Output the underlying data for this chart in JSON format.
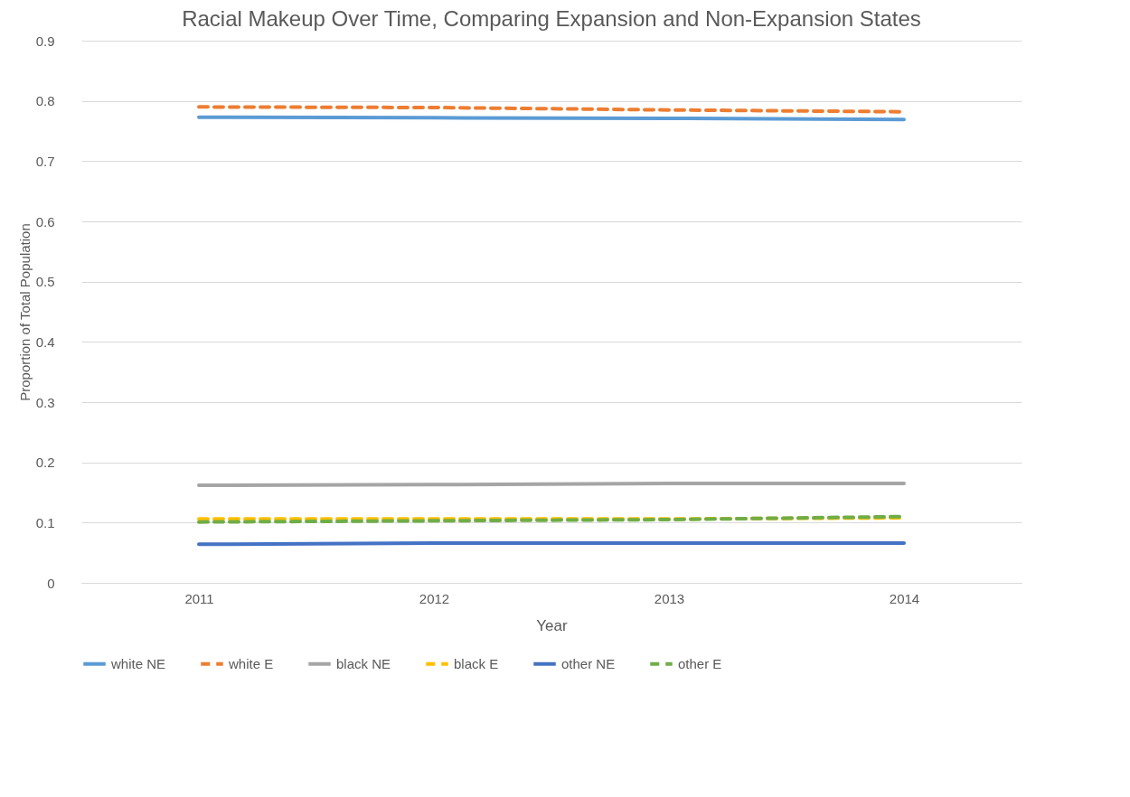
{
  "chart_data": {
    "type": "line",
    "title": "Racial Makeup Over Time, Comparing Expansion and Non-Expansion States",
    "xlabel": "Year",
    "ylabel": "Proportion of Total Population",
    "categories": [
      "2011",
      "2012",
      "2013",
      "2014"
    ],
    "ylim": [
      0,
      0.9
    ],
    "yticks": [
      {
        "value": 0,
        "label": "0"
      },
      0.1,
      0.2,
      0.3,
      0.4,
      0.5,
      0.6,
      0.7,
      0.8,
      0.9
    ],
    "grid": "y",
    "legend": "bottom",
    "marker": "none",
    "series": [
      {
        "name": "white NE",
        "color": "#5b9bd5",
        "line_style": "solid",
        "values": [
          0.773,
          0.772,
          0.771,
          0.769
        ]
      },
      {
        "name": "white E",
        "color": "#ed7d31",
        "line_style": "dashed",
        "values": [
          0.79,
          0.789,
          0.785,
          0.782
        ]
      },
      {
        "name": "black NE",
        "color": "#a5a5a5",
        "line_style": "solid",
        "values": [
          0.162,
          0.163,
          0.165,
          0.165
        ]
      },
      {
        "name": "black E",
        "color": "#ffc000",
        "line_style": "dashed",
        "values": [
          0.106,
          0.106,
          0.106,
          0.108
        ]
      },
      {
        "name": "other NE",
        "color": "#4472c4",
        "line_style": "solid",
        "values": [
          0.064,
          0.066,
          0.066,
          0.066
        ]
      },
      {
        "name": "other E",
        "color": "#70ad47",
        "line_style": "dashed",
        "values": [
          0.101,
          0.103,
          0.105,
          0.11
        ]
      }
    ]
  }
}
